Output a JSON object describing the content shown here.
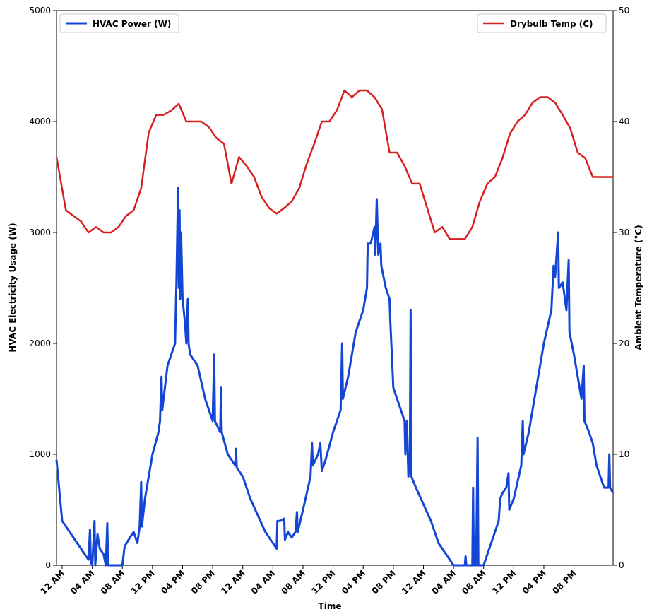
{
  "chart_data": {
    "type": "line",
    "xlabel": "Time",
    "ylabel": "HVAC Electricity Usage (W)",
    "y2label": "Ambient Temperature (°C)",
    "xlim": [
      -0.75,
      73.2
    ],
    "xticks": [
      {
        "value": 0,
        "label": "12 AM"
      },
      {
        "value": 4,
        "label": "04 AM"
      },
      {
        "value": 8,
        "label": "08 AM"
      },
      {
        "value": 12,
        "label": "12 PM"
      },
      {
        "value": 16,
        "label": "04 PM"
      },
      {
        "value": 20,
        "label": "08 PM"
      },
      {
        "value": 24,
        "label": "12 AM"
      },
      {
        "value": 28,
        "label": "04 AM"
      },
      {
        "value": 32,
        "label": "08 AM"
      },
      {
        "value": 36,
        "label": "12 PM"
      },
      {
        "value": 40,
        "label": "04 PM"
      },
      {
        "value": 44,
        "label": "08 PM"
      },
      {
        "value": 48,
        "label": "12 AM"
      },
      {
        "value": 52,
        "label": "04 AM"
      },
      {
        "value": 56,
        "label": "08 AM"
      },
      {
        "value": 60,
        "label": "12 PM"
      },
      {
        "value": 64,
        "label": "04 PM"
      },
      {
        "value": 68,
        "label": "08 PM"
      }
    ],
    "ylim": [
      0,
      5000
    ],
    "yticks": [
      0,
      1000,
      2000,
      3000,
      4000,
      5000
    ],
    "y2lim": [
      0,
      50
    ],
    "y2ticks": [
      0,
      10,
      20,
      30,
      40,
      50
    ],
    "series": [
      {
        "name": "HVAC Power (W)",
        "color": "#1446d6",
        "legend": "upper left",
        "x": [
          -0.75,
          0,
          1,
          2,
          3,
          3.5,
          3.7,
          3.8,
          4,
          4.3,
          4.4,
          4.7,
          5,
          5.5,
          5.8,
          6,
          6.1,
          7,
          8,
          8.3,
          9,
          9.5,
          10,
          10.3,
          10.5,
          10.6,
          11,
          12,
          12.8,
          13,
          13.2,
          13.3,
          14,
          15,
          15.2,
          15.4,
          15.5,
          15.6,
          15.7,
          15.8,
          16,
          16.3,
          16.5,
          16.7,
          16.8,
          17,
          18,
          19,
          20,
          20.2,
          20.3,
          21,
          21.1,
          21.2,
          22,
          23,
          23.1,
          23.2,
          24,
          25,
          26,
          27,
          28,
          28.5,
          28.6,
          29,
          29.5,
          29.6,
          30,
          30.5,
          31,
          31.2,
          31.3,
          32,
          33,
          33.2,
          33.3,
          34,
          34.3,
          34.5,
          35,
          36,
          37,
          37.2,
          37.3,
          38,
          39,
          40,
          40.5,
          40.6,
          41,
          41.5,
          41.6,
          41.8,
          42,
          42.3,
          42.4,
          43,
          43.5,
          43.6,
          44,
          45,
          45.5,
          45.6,
          45.8,
          46,
          46.2,
          46.3,
          46.4,
          47,
          48,
          49,
          50,
          51,
          52,
          53,
          53.5,
          53.6,
          53.7,
          54,
          54.5,
          54.6,
          54.7,
          55,
          55.2,
          55.3,
          56,
          57,
          58,
          58.2,
          58.5,
          59,
          59.3,
          59.4,
          60,
          61,
          61.2,
          61.3,
          62,
          63,
          64,
          65,
          65.3,
          65.5,
          65.9,
          66,
          66.5,
          67,
          67.3,
          67.4,
          68,
          69,
          69.3,
          69.4,
          70,
          70.5,
          71,
          71.5,
          72,
          72.6,
          72.7,
          72.8,
          73.2
        ],
        "values": [
          950,
          400,
          300,
          200,
          100,
          50,
          320,
          30,
          0,
          400,
          0,
          280,
          150,
          100,
          0,
          380,
          0,
          0,
          0,
          170,
          250,
          300,
          200,
          350,
          750,
          350,
          600,
          1000,
          1200,
          1300,
          1700,
          1400,
          1800,
          2000,
          2600,
          3400,
          2500,
          3200,
          2400,
          3000,
          2400,
          2200,
          2000,
          2400,
          2000,
          1900,
          1800,
          1500,
          1300,
          1900,
          1300,
          1200,
          1600,
          1200,
          1000,
          900,
          1050,
          880,
          800,
          600,
          450,
          300,
          200,
          150,
          400,
          400,
          420,
          230,
          300,
          250,
          300,
          480,
          300,
          500,
          800,
          1100,
          900,
          1000,
          1100,
          850,
          950,
          1200,
          1400,
          2000,
          1500,
          1700,
          2100,
          2300,
          2500,
          2900,
          2900,
          3050,
          2800,
          3300,
          2800,
          2900,
          2700,
          2500,
          2400,
          2200,
          1600,
          1400,
          1300,
          1000,
          1300,
          800,
          1000,
          2300,
          800,
          700,
          550,
          400,
          200,
          100,
          0,
          0,
          0,
          80,
          0,
          0,
          0,
          700,
          0,
          0,
          1150,
          0,
          0,
          200,
          400,
          600,
          650,
          700,
          830,
          500,
          600,
          900,
          1300,
          1000,
          1200,
          1600,
          2000,
          2300,
          2700,
          2600,
          3000,
          2500,
          2550,
          2300,
          2750,
          2100,
          1900,
          1500,
          1800,
          1300,
          1200,
          1100,
          900,
          800,
          700,
          700,
          1000,
          700,
          650
        ]
      },
      {
        "name": "Drybulb Temp (C)",
        "color": "#d62020",
        "axis": "y2",
        "legend": "upper right",
        "x": [
          -0.75,
          0.5,
          1.5,
          2.5,
          3.5,
          4.5,
          5.5,
          6.5,
          7.5,
          8.5,
          9.5,
          10.5,
          11.5,
          12.5,
          13.5,
          14.5,
          15.5,
          16.5,
          17.5,
          18.5,
          19.5,
          20.5,
          21.5,
          22.5,
          23.5,
          24.5,
          25.5,
          26.5,
          27.5,
          28.5,
          29.5,
          30.5,
          31.5,
          32.5,
          33.5,
          34.5,
          35.5,
          36.5,
          37.5,
          38.5,
          39.5,
          40.5,
          41.5,
          42.5,
          43.5,
          44.5,
          45.5,
          46.5,
          47.5,
          48.5,
          49.5,
          50.5,
          51.5,
          52.5,
          53.5,
          54.5,
          55.5,
          56.5,
          57.5,
          58.5,
          59.5,
          60.5,
          61.5,
          62.5,
          63.5,
          64.5,
          65.5,
          66.5,
          67.5,
          68.5,
          69.5,
          70.5,
          71.5,
          73.2
        ],
        "values": [
          36.8,
          32,
          31.5,
          31,
          30,
          30.5,
          30,
          30,
          30.5,
          31.5,
          32,
          34,
          39,
          40.6,
          40.6,
          41,
          41.6,
          40,
          40,
          40,
          39.5,
          38.5,
          38,
          34.4,
          36.8,
          36,
          35,
          33.2,
          32.2,
          31.7,
          32.2,
          32.8,
          34,
          36.2,
          38,
          40,
          40,
          41,
          42.8,
          42.2,
          42.8,
          42.8,
          42.2,
          41.1,
          37.2,
          37.2,
          36,
          34.4,
          34.4,
          32.2,
          30,
          30.5,
          29.4,
          29.4,
          29.4,
          30.5,
          32.8,
          34.4,
          35,
          36.7,
          38.9,
          40,
          40.6,
          41.7,
          42.2,
          42.2,
          41.7,
          40.6,
          39.4,
          37.2,
          36.7,
          35,
          35,
          35
        ]
      }
    ]
  }
}
